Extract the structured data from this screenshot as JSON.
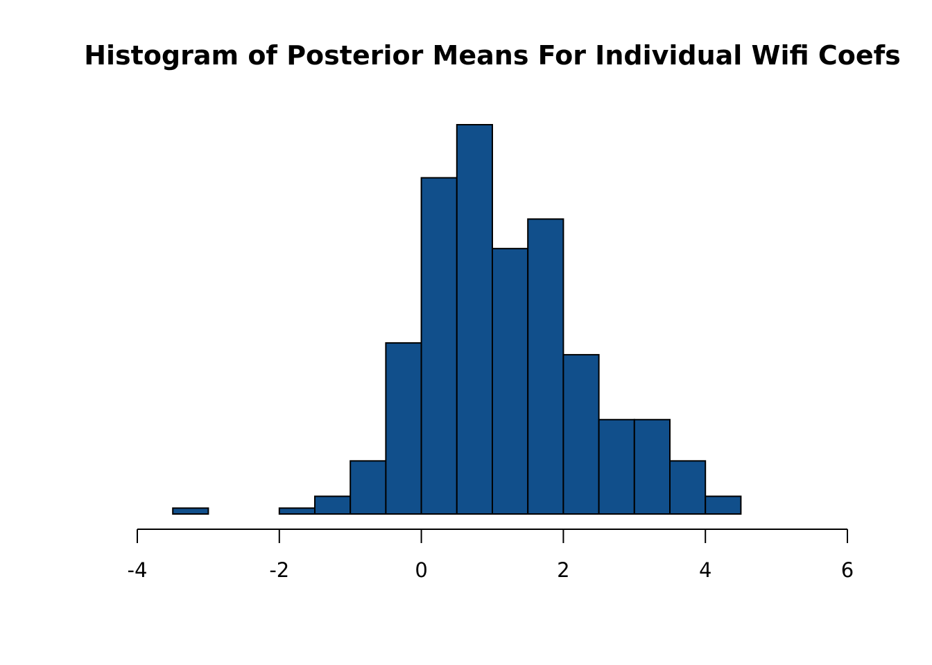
{
  "chart_data": {
    "type": "bar",
    "title": "Histogram of Posterior Means For Individual Wifi Coefs",
    "xlabel": "",
    "ylabel": "",
    "bin_edges": [
      -3.5,
      -3.0,
      -2.5,
      -2.0,
      -1.5,
      -1.0,
      -0.5,
      0.0,
      0.5,
      1.0,
      1.5,
      2.0,
      2.5,
      3.0,
      3.5,
      4.0,
      4.5
    ],
    "values": [
      1,
      0,
      0,
      1,
      3,
      9,
      29,
      57,
      66,
      45,
      50,
      27,
      16,
      16,
      9,
      3
    ],
    "xlim": [
      -4,
      6
    ],
    "ylim": [
      0,
      66
    ],
    "x_ticks": [
      -4,
      -2,
      0,
      2,
      4,
      6
    ],
    "x_tick_labels": [
      "-4",
      "-2",
      "0",
      "2",
      "4",
      "6"
    ],
    "y_axis_shown": false,
    "grid": false,
    "legend": "none",
    "bar_color": "#114f8b",
    "edge_color": "#000000"
  }
}
